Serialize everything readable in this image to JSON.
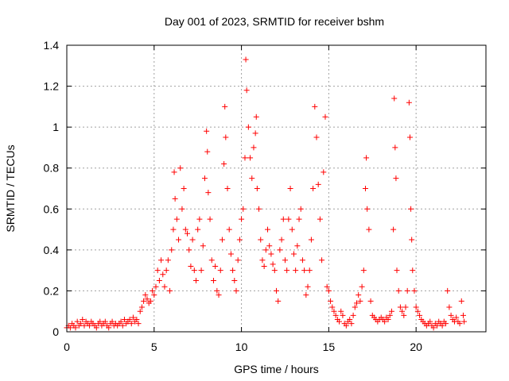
{
  "chart_data": {
    "type": "scatter",
    "title": "Day 001 of 2023, SRMTID for receiver bshm",
    "xlabel": "GPS time / hours",
    "ylabel": "SRMTID / TECUs",
    "xlim": [
      0,
      24
    ],
    "ylim": [
      0,
      1.4
    ],
    "x_ticks": [
      0,
      5,
      10,
      15,
      20
    ],
    "x_tick_labels": [
      "0",
      "5",
      "10",
      "15",
      "20"
    ],
    "y_ticks": [
      0,
      0.2,
      0.4,
      0.6,
      0.8,
      1,
      1.2,
      1.4
    ],
    "y_tick_labels": [
      "0",
      "0.2",
      "0.4",
      "0.6",
      "0.8",
      "1",
      "1.2",
      "1.4"
    ],
    "grid": true,
    "marker": "+",
    "color": "#ff0000",
    "series": [
      {
        "name": "SRMTID",
        "points": [
          [
            0.0,
            0.02
          ],
          [
            0.1,
            0.03
          ],
          [
            0.2,
            0.02
          ],
          [
            0.3,
            0.04
          ],
          [
            0.4,
            0.03
          ],
          [
            0.5,
            0.02
          ],
          [
            0.6,
            0.05
          ],
          [
            0.7,
            0.03
          ],
          [
            0.8,
            0.04
          ],
          [
            0.9,
            0.06
          ],
          [
            1.0,
            0.03
          ],
          [
            1.1,
            0.05
          ],
          [
            1.2,
            0.04
          ],
          [
            1.3,
            0.03
          ],
          [
            1.4,
            0.05
          ],
          [
            1.5,
            0.04
          ],
          [
            1.6,
            0.03
          ],
          [
            1.7,
            0.02
          ],
          [
            1.8,
            0.04
          ],
          [
            1.9,
            0.05
          ],
          [
            2.0,
            0.03
          ],
          [
            2.1,
            0.04
          ],
          [
            2.2,
            0.05
          ],
          [
            2.3,
            0.03
          ],
          [
            2.4,
            0.02
          ],
          [
            2.5,
            0.04
          ],
          [
            2.6,
            0.05
          ],
          [
            2.7,
            0.03
          ],
          [
            2.8,
            0.04
          ],
          [
            2.9,
            0.03
          ],
          [
            3.0,
            0.04
          ],
          [
            3.1,
            0.05
          ],
          [
            3.2,
            0.03
          ],
          [
            3.3,
            0.06
          ],
          [
            3.4,
            0.04
          ],
          [
            3.5,
            0.05
          ],
          [
            3.6,
            0.06
          ],
          [
            3.7,
            0.04
          ],
          [
            3.8,
            0.07
          ],
          [
            3.9,
            0.05
          ],
          [
            4.0,
            0.06
          ],
          [
            4.1,
            0.04
          ],
          [
            4.2,
            0.1
          ],
          [
            4.3,
            0.12
          ],
          [
            4.4,
            0.15
          ],
          [
            4.5,
            0.18
          ],
          [
            4.6,
            0.16
          ],
          [
            4.7,
            0.14
          ],
          [
            4.8,
            0.15
          ],
          [
            4.9,
            0.2
          ],
          [
            5.0,
            0.18
          ],
          [
            5.1,
            0.22
          ],
          [
            5.2,
            0.3
          ],
          [
            5.3,
            0.25
          ],
          [
            5.4,
            0.35
          ],
          [
            5.5,
            0.28
          ],
          [
            5.6,
            0.22
          ],
          [
            5.7,
            0.3
          ],
          [
            5.8,
            0.35
          ],
          [
            5.9,
            0.2
          ],
          [
            6.0,
            0.4
          ],
          [
            6.1,
            0.5
          ],
          [
            6.15,
            0.78
          ],
          [
            6.2,
            0.65
          ],
          [
            6.3,
            0.55
          ],
          [
            6.4,
            0.45
          ],
          [
            6.5,
            0.8
          ],
          [
            6.6,
            0.6
          ],
          [
            6.7,
            0.7
          ],
          [
            6.8,
            0.5
          ],
          [
            6.9,
            0.48
          ],
          [
            7.0,
            0.4
          ],
          [
            7.1,
            0.32
          ],
          [
            7.2,
            0.45
          ],
          [
            7.3,
            0.3
          ],
          [
            7.4,
            0.25
          ],
          [
            7.5,
            0.5
          ],
          [
            7.6,
            0.55
          ],
          [
            7.7,
            0.3
          ],
          [
            7.8,
            0.42
          ],
          [
            7.9,
            0.75
          ],
          [
            8.0,
            0.98
          ],
          [
            8.05,
            0.88
          ],
          [
            8.1,
            0.68
          ],
          [
            8.2,
            0.55
          ],
          [
            8.3,
            0.35
          ],
          [
            8.4,
            0.25
          ],
          [
            8.5,
            0.32
          ],
          [
            8.6,
            0.2
          ],
          [
            8.7,
            0.18
          ],
          [
            8.8,
            0.3
          ],
          [
            8.9,
            0.45
          ],
          [
            9.0,
            0.82
          ],
          [
            9.05,
            1.1
          ],
          [
            9.1,
            0.95
          ],
          [
            9.2,
            0.7
          ],
          [
            9.3,
            0.5
          ],
          [
            9.4,
            0.38
          ],
          [
            9.5,
            0.3
          ],
          [
            9.6,
            0.25
          ],
          [
            9.7,
            0.2
          ],
          [
            9.8,
            0.35
          ],
          [
            9.9,
            0.45
          ],
          [
            10.0,
            0.55
          ],
          [
            10.1,
            0.6
          ],
          [
            10.2,
            0.85
          ],
          [
            10.25,
            1.33
          ],
          [
            10.3,
            1.18
          ],
          [
            10.4,
            1.0
          ],
          [
            10.5,
            0.85
          ],
          [
            10.6,
            0.75
          ],
          [
            10.7,
            0.9
          ],
          [
            10.8,
            0.97
          ],
          [
            10.85,
            1.05
          ],
          [
            10.9,
            0.7
          ],
          [
            11.0,
            0.6
          ],
          [
            11.1,
            0.45
          ],
          [
            11.2,
            0.35
          ],
          [
            11.3,
            0.32
          ],
          [
            11.4,
            0.4
          ],
          [
            11.5,
            0.5
          ],
          [
            11.6,
            0.42
          ],
          [
            11.7,
            0.38
          ],
          [
            11.8,
            0.33
          ],
          [
            11.9,
            0.3
          ],
          [
            12.0,
            0.2
          ],
          [
            12.1,
            0.15
          ],
          [
            12.2,
            0.4
          ],
          [
            12.3,
            0.45
          ],
          [
            12.4,
            0.55
          ],
          [
            12.5,
            0.35
          ],
          [
            12.6,
            0.3
          ],
          [
            12.7,
            0.55
          ],
          [
            12.8,
            0.7
          ],
          [
            12.9,
            0.5
          ],
          [
            13.0,
            0.38
          ],
          [
            13.1,
            0.3
          ],
          [
            13.2,
            0.42
          ],
          [
            13.3,
            0.55
          ],
          [
            13.4,
            0.6
          ],
          [
            13.5,
            0.35
          ],
          [
            13.6,
            0.3
          ],
          [
            13.7,
            0.18
          ],
          [
            13.8,
            0.22
          ],
          [
            13.9,
            0.3
          ],
          [
            14.0,
            0.45
          ],
          [
            14.1,
            0.7
          ],
          [
            14.2,
            1.1
          ],
          [
            14.3,
            0.95
          ],
          [
            14.4,
            0.72
          ],
          [
            14.5,
            0.55
          ],
          [
            14.6,
            0.35
          ],
          [
            14.7,
            0.78
          ],
          [
            14.8,
            1.05
          ],
          [
            14.9,
            0.22
          ],
          [
            15.0,
            0.2
          ],
          [
            15.1,
            0.15
          ],
          [
            15.2,
            0.12
          ],
          [
            15.3,
            0.1
          ],
          [
            15.4,
            0.08
          ],
          [
            15.5,
            0.06
          ],
          [
            15.6,
            0.05
          ],
          [
            15.7,
            0.1
          ],
          [
            15.8,
            0.08
          ],
          [
            15.9,
            0.04
          ],
          [
            16.0,
            0.03
          ],
          [
            16.1,
            0.05
          ],
          [
            16.2,
            0.06
          ],
          [
            16.3,
            0.04
          ],
          [
            16.4,
            0.08
          ],
          [
            16.5,
            0.12
          ],
          [
            16.6,
            0.14
          ],
          [
            16.7,
            0.18
          ],
          [
            16.8,
            0.15
          ],
          [
            16.9,
            0.22
          ],
          [
            17.0,
            0.3
          ],
          [
            17.1,
            0.7
          ],
          [
            17.15,
            0.85
          ],
          [
            17.2,
            0.6
          ],
          [
            17.3,
            0.5
          ],
          [
            17.4,
            0.15
          ],
          [
            17.5,
            0.08
          ],
          [
            17.6,
            0.07
          ],
          [
            17.7,
            0.06
          ],
          [
            17.8,
            0.05
          ],
          [
            17.9,
            0.06
          ],
          [
            18.0,
            0.07
          ],
          [
            18.1,
            0.06
          ],
          [
            18.2,
            0.05
          ],
          [
            18.3,
            0.07
          ],
          [
            18.4,
            0.06
          ],
          [
            18.5,
            0.08
          ],
          [
            18.6,
            0.1
          ],
          [
            18.7,
            0.5
          ],
          [
            18.75,
            1.14
          ],
          [
            18.8,
            0.9
          ],
          [
            18.85,
            0.75
          ],
          [
            18.9,
            0.3
          ],
          [
            19.0,
            0.2
          ],
          [
            19.1,
            0.12
          ],
          [
            19.2,
            0.1
          ],
          [
            19.3,
            0.08
          ],
          [
            19.4,
            0.12
          ],
          [
            19.5,
            0.2
          ],
          [
            19.6,
            1.12
          ],
          [
            19.65,
            0.95
          ],
          [
            19.7,
            0.6
          ],
          [
            19.75,
            0.45
          ],
          [
            19.8,
            0.3
          ],
          [
            19.9,
            0.2
          ],
          [
            20.0,
            0.12
          ],
          [
            20.1,
            0.1
          ],
          [
            20.2,
            0.08
          ],
          [
            20.3,
            0.06
          ],
          [
            20.4,
            0.05
          ],
          [
            20.5,
            0.04
          ],
          [
            20.6,
            0.03
          ],
          [
            20.7,
            0.04
          ],
          [
            20.8,
            0.05
          ],
          [
            20.9,
            0.03
          ],
          [
            21.0,
            0.02
          ],
          [
            21.1,
            0.04
          ],
          [
            21.2,
            0.03
          ],
          [
            21.3,
            0.05
          ],
          [
            21.4,
            0.04
          ],
          [
            21.5,
            0.03
          ],
          [
            21.6,
            0.05
          ],
          [
            21.7,
            0.04
          ],
          [
            21.8,
            0.2
          ],
          [
            21.9,
            0.12
          ],
          [
            22.0,
            0.08
          ],
          [
            22.1,
            0.06
          ],
          [
            22.2,
            0.05
          ],
          [
            22.3,
            0.07
          ],
          [
            22.4,
            0.05
          ],
          [
            22.5,
            0.04
          ],
          [
            22.6,
            0.15
          ],
          [
            22.7,
            0.08
          ],
          [
            22.75,
            0.05
          ]
        ]
      }
    ]
  }
}
